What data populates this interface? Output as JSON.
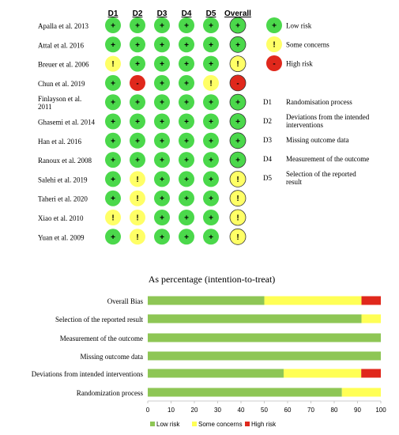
{
  "chart_data": [
    {
      "type": "table",
      "columns": [
        "D1",
        "D2",
        "D3",
        "D4",
        "D5",
        "Overall"
      ],
      "studies": [
        {
          "name": "Apalla et al. 2013",
          "judgements": [
            "low",
            "low",
            "low",
            "low",
            "low",
            "low"
          ]
        },
        {
          "name": "Attal et al. 2016",
          "judgements": [
            "low",
            "low",
            "low",
            "low",
            "low",
            "low"
          ]
        },
        {
          "name": "Breuer et al. 2006",
          "judgements": [
            "some",
            "low",
            "low",
            "low",
            "low",
            "some"
          ]
        },
        {
          "name": "Chun et al. 2019",
          "judgements": [
            "low",
            "high",
            "low",
            "low",
            "some",
            "high"
          ]
        },
        {
          "name": "Finlayson et al. 2011",
          "judgements": [
            "low",
            "low",
            "low",
            "low",
            "low",
            "low"
          ]
        },
        {
          "name": "Ghasemi et al. 2014",
          "judgements": [
            "low",
            "low",
            "low",
            "low",
            "low",
            "low"
          ]
        },
        {
          "name": "Han et al. 2016",
          "judgements": [
            "low",
            "low",
            "low",
            "low",
            "low",
            "low"
          ]
        },
        {
          "name": "Ranoux et al. 2008",
          "judgements": [
            "low",
            "low",
            "low",
            "low",
            "low",
            "low"
          ]
        },
        {
          "name": "Salehi et al. 2019",
          "judgements": [
            "low",
            "some",
            "low",
            "low",
            "low",
            "some"
          ]
        },
        {
          "name": "Taheri et al. 2020",
          "judgements": [
            "low",
            "some",
            "low",
            "low",
            "low",
            "some"
          ]
        },
        {
          "name": "Xiao et al. 2010",
          "judgements": [
            "some",
            "some",
            "low",
            "low",
            "low",
            "some"
          ]
        },
        {
          "name": "Yuan et al. 2009",
          "judgements": [
            "low",
            "some",
            "low",
            "low",
            "low",
            "some"
          ]
        }
      ],
      "symbols": {
        "low": "+",
        "some": "!",
        "high": "-"
      },
      "legend": [
        {
          "key": "low",
          "label": "Low risk"
        },
        {
          "key": "some",
          "label": "Some concerns"
        },
        {
          "key": "high",
          "label": "High risk"
        }
      ],
      "domains": [
        {
          "code": "D1",
          "label": "Randomisation process"
        },
        {
          "code": "D2",
          "label": "Deviations from the intended interventions"
        },
        {
          "code": "D3",
          "label": "Missing outcome data"
        },
        {
          "code": "D4",
          "label": "Measurement of the outcome"
        },
        {
          "code": "D5",
          "label": "Selection of the reported result"
        }
      ],
      "colors": {
        "low": "#4bd84b",
        "some": "#ffff66",
        "high": "#e0281c"
      }
    },
    {
      "type": "bar",
      "orientation": "horizontal",
      "stacked": true,
      "title": "As percentage (intention-to-treat)",
      "categories": [
        "Overall Bias",
        "Selection of the reported result",
        "Measurement of the outcome",
        "Missing outcome data",
        "Deviations from intended interventions",
        "Randomization process"
      ],
      "series": [
        {
          "name": "Low risk",
          "color": "#8ec655",
          "values": [
            50,
            91.7,
            100,
            100,
            58.3,
            83.3
          ]
        },
        {
          "name": "Some concerns",
          "color": "#ffff55",
          "values": [
            41.7,
            8.3,
            0,
            0,
            33.3,
            16.7
          ]
        },
        {
          "name": "High risk",
          "color": "#e0281c",
          "values": [
            8.3,
            0,
            0,
            0,
            8.4,
            0
          ]
        }
      ],
      "xlim": [
        0,
        100
      ],
      "xticks": [
        "0",
        "10",
        "20",
        "30",
        "40",
        "50",
        "60",
        "70",
        "80",
        "90",
        "100"
      ],
      "grid": false,
      "legend_position": "bottom"
    }
  ]
}
